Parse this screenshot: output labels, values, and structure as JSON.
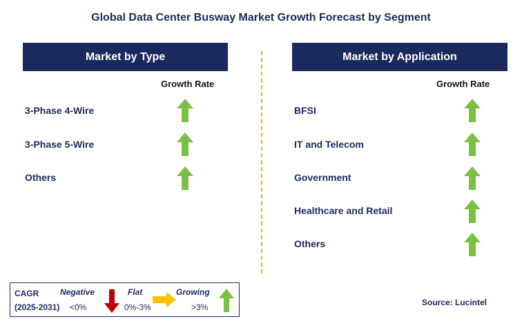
{
  "title": "Global Data Center Busway Market Growth Forecast by Segment",
  "left_panel": {
    "header": "Market by Type",
    "column_label": "Growth Rate",
    "rows": [
      {
        "label": "3-Phase 4-Wire",
        "trend": "growing"
      },
      {
        "label": "3-Phase 5-Wire",
        "trend": "growing"
      },
      {
        "label": "Others",
        "trend": "growing"
      }
    ]
  },
  "right_panel": {
    "header": "Market by Application",
    "column_label": "Growth Rate",
    "rows": [
      {
        "label": "BFSI",
        "trend": "growing"
      },
      {
        "label": "IT and Telecom",
        "trend": "growing"
      },
      {
        "label": "Government",
        "trend": "growing"
      },
      {
        "label": "Healthcare and Retail",
        "trend": "growing"
      },
      {
        "label": "Others",
        "trend": "growing"
      }
    ]
  },
  "legend": {
    "cagr_label": "CAGR",
    "period": "(2025-2031)",
    "negative": {
      "label": "Negative",
      "range": "<0%",
      "icon": "red-down-arrow-icon"
    },
    "flat": {
      "label": "Flat",
      "range": "0%-3%",
      "icon": "yellow-right-arrow-icon"
    },
    "growing": {
      "label": "Growing",
      "range": ">3%",
      "icon": "green-up-arrow-icon"
    }
  },
  "source": "Source: Lucintel",
  "colors": {
    "header_bg": "#1a2a5e",
    "growing": "#7ac143",
    "negative": "#c00000",
    "flat": "#ffc000",
    "divider": "#f0b400"
  }
}
